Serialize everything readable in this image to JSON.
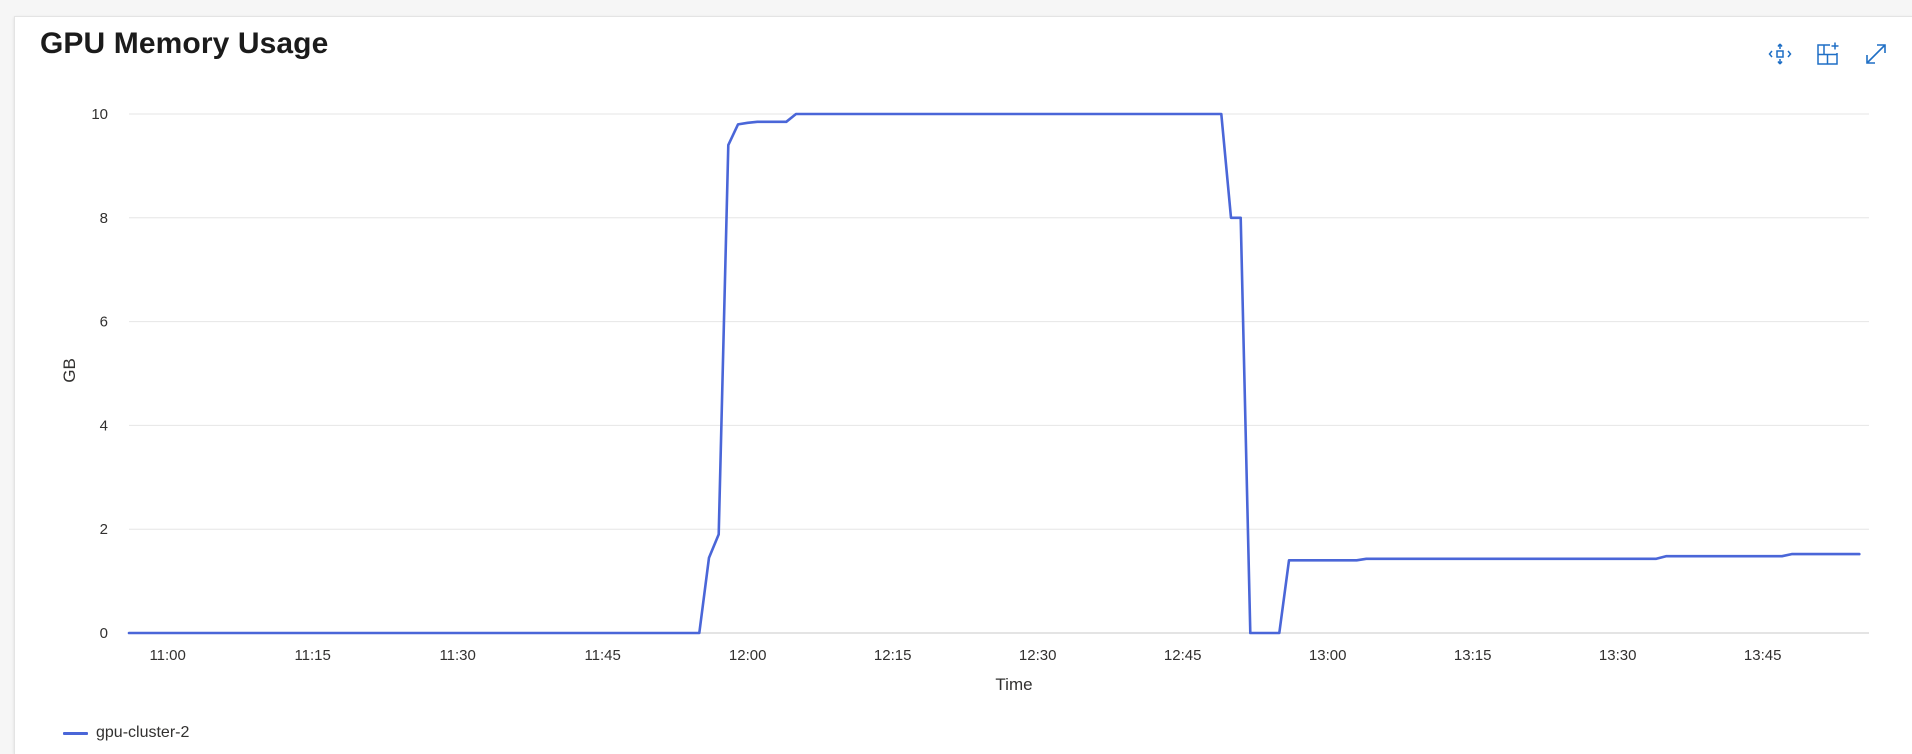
{
  "title": "GPU Memory Usage",
  "toolbar": {
    "icons": [
      "move-icon",
      "add-to-dashboard-icon",
      "expand-icon"
    ],
    "accent": "#1f6fc5"
  },
  "chart_data": {
    "type": "line",
    "xlabel": "Time",
    "ylabel": "GB",
    "ylim": [
      0,
      10
    ],
    "yticks": [
      "0",
      "2",
      "4",
      "6",
      "8",
      "10"
    ],
    "xticks": [
      "11:00",
      "11:15",
      "11:30",
      "11:45",
      "12:00",
      "12:15",
      "12:30",
      "12:45",
      "13:00",
      "13:15",
      "13:30",
      "13:45"
    ],
    "xlim": [
      "10:56",
      "13:56"
    ],
    "grid": true,
    "legend": "bottom-left",
    "series": [
      {
        "name": "gpu-cluster-2",
        "color": "#4a66d8",
        "points": [
          [
            "10:56",
            0
          ],
          [
            "11:55",
            0
          ],
          [
            "11:56",
            1.45
          ],
          [
            "11:57",
            1.9
          ],
          [
            "11:58",
            9.4
          ],
          [
            "11:59",
            9.8
          ],
          [
            "12:00",
            9.83
          ],
          [
            "12:01",
            9.85
          ],
          [
            "12:04",
            9.85
          ],
          [
            "12:05",
            10.0
          ],
          [
            "12:49",
            10.0
          ],
          [
            "12:50",
            8.0
          ],
          [
            "12:51",
            8.0
          ],
          [
            "12:52",
            0
          ],
          [
            "12:55",
            0
          ],
          [
            "12:56",
            1.4
          ],
          [
            "13:03",
            1.4
          ],
          [
            "13:04",
            1.43
          ],
          [
            "13:34",
            1.43
          ],
          [
            "13:35",
            1.48
          ],
          [
            "13:47",
            1.48
          ],
          [
            "13:48",
            1.52
          ],
          [
            "13:55",
            1.52
          ]
        ]
      }
    ]
  }
}
